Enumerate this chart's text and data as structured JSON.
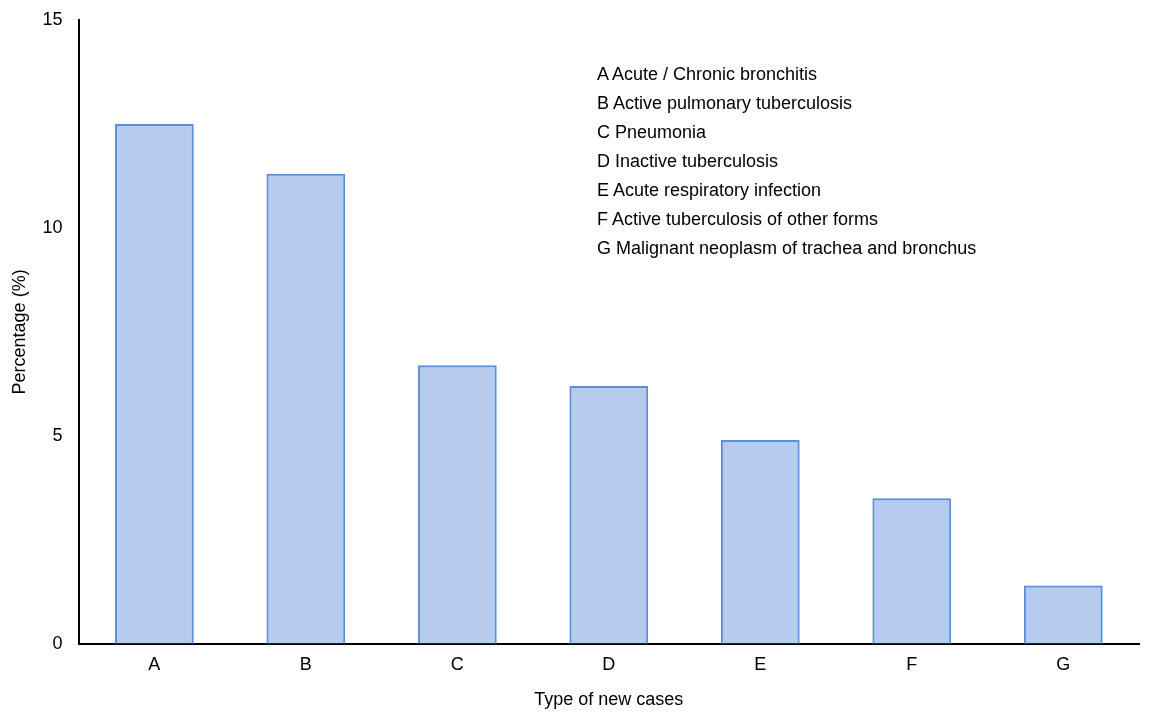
{
  "chart_data": {
    "type": "bar",
    "xlabel": "Type of new cases",
    "ylabel": "Percentage (%)",
    "categories": [
      "A",
      "B",
      "C",
      "D",
      "E",
      "F",
      "G"
    ],
    "values": [
      12.5,
      11.3,
      6.7,
      6.2,
      4.9,
      3.5,
      1.4
    ],
    "color": "#5b8fd9",
    "ylim": [
      0,
      15
    ],
    "yticks": [
      0,
      5,
      10,
      15
    ],
    "grid": false,
    "legend": false,
    "annotations": [
      "A  Acute / Chronic bronchitis",
      "B  Active pulmonary tuberculosis",
      "C  Pneumonia",
      "D  Inactive tuberculosis",
      "E  Acute respiratory infection",
      "F  Active tuberculosis of other forms",
      "G  Malignant neoplasm of trachea and bronchus"
    ]
  }
}
